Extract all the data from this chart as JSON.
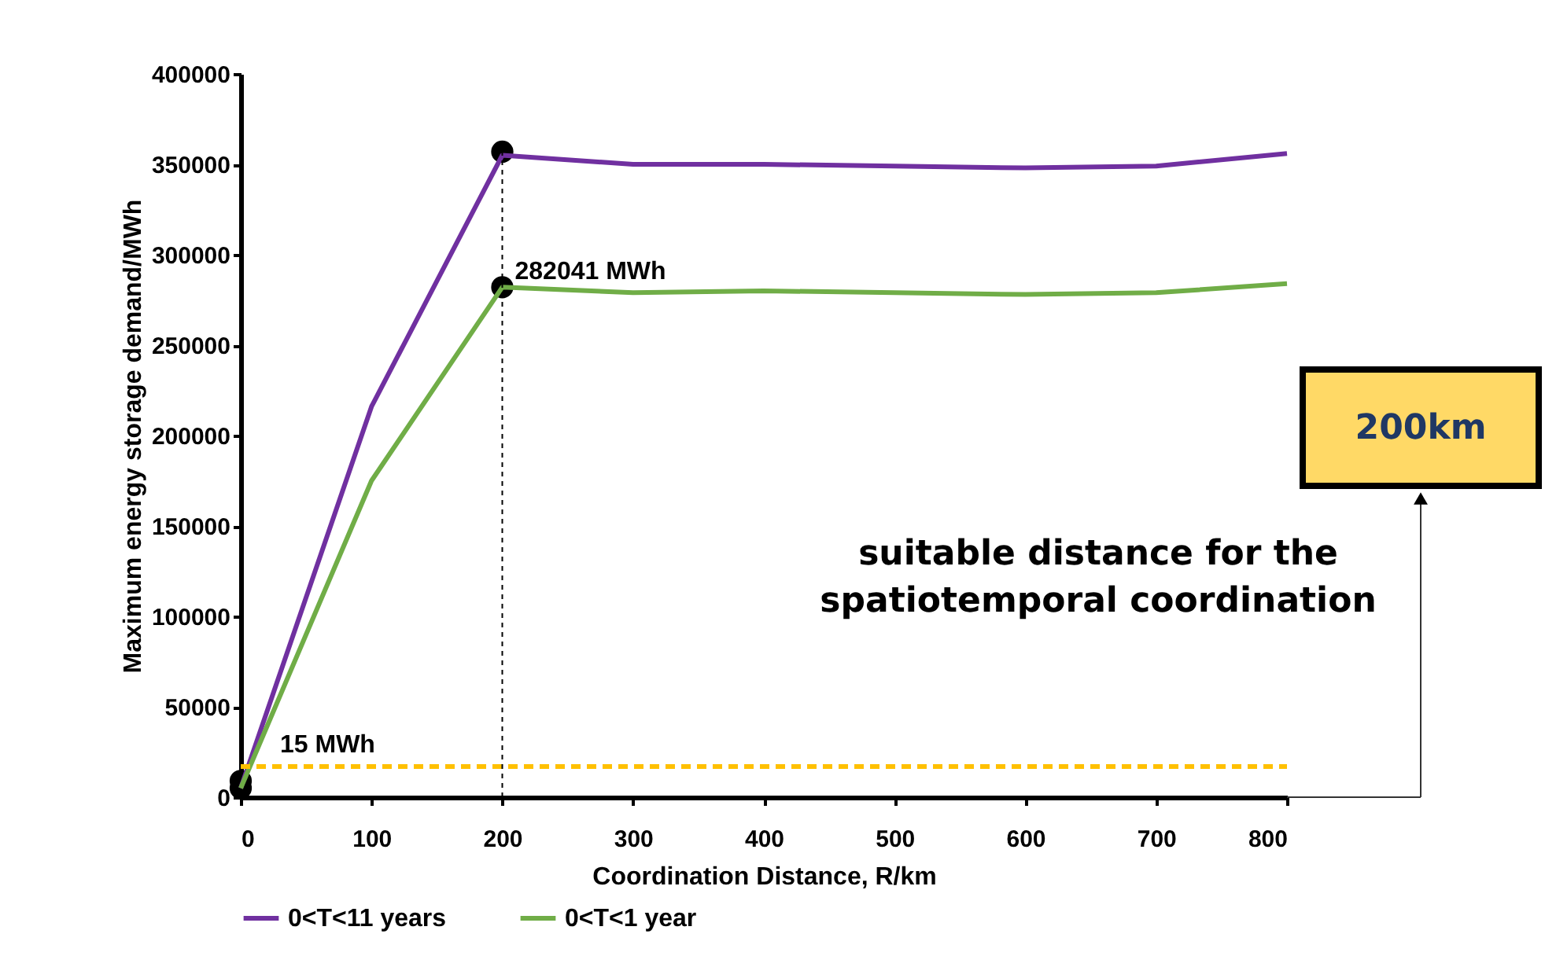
{
  "chart_data": {
    "type": "line",
    "xlabel": "Coordination Distance, R/km",
    "ylabel": "Maximum energy storage  demand/MWh",
    "xlim": [
      0,
      800
    ],
    "xticks": [
      0,
      100,
      200,
      300,
      400,
      500,
      600,
      700,
      800
    ],
    "ylim": [
      0,
      400000
    ],
    "yticks": [
      0,
      50000,
      100000,
      150000,
      200000,
      250000,
      300000,
      350000,
      400000
    ],
    "x": [
      0,
      100,
      200,
      300,
      400,
      500,
      600,
      700,
      800
    ],
    "series": [
      {
        "name": "0<T<11 years",
        "color": "#7030a0",
        "values": [
          5000,
          216000,
          355000,
          350000,
          350000,
          349000,
          348000,
          349000,
          356000
        ]
      },
      {
        "name": "0<T<1 year",
        "color": "#70ad47",
        "values": [
          5000,
          175000,
          282041,
          279000,
          280000,
          279000,
          278000,
          279000,
          284000
        ]
      },
      {
        "type": "scatter",
        "marker": "circle",
        "color": "#000000",
        "values": [
          9000,
          null,
          357000,
          null,
          null,
          null,
          null,
          null,
          null
        ]
      },
      {
        "type": "scatter",
        "marker": "circle",
        "color": "#000000",
        "values": [
          5000,
          null,
          282041,
          null,
          null,
          null,
          null,
          null,
          null
        ]
      }
    ],
    "ref_lines": [
      {
        "axis": "y",
        "value": 17000,
        "label": "15 MWh",
        "color": "#ffc000",
        "line_style": "dashed"
      },
      {
        "axis": "x",
        "value": 200,
        "color": "#000000",
        "line_style": "dashed"
      }
    ],
    "annotations": [
      {
        "text": "282041 MWh",
        "x": 200,
        "y": 282041
      },
      "suitable distance for the\nspatiotemporal coordination",
      "200km"
    ],
    "legend": "bottom",
    "marker": "none",
    "line_style": "solid",
    "grid": false
  }
}
